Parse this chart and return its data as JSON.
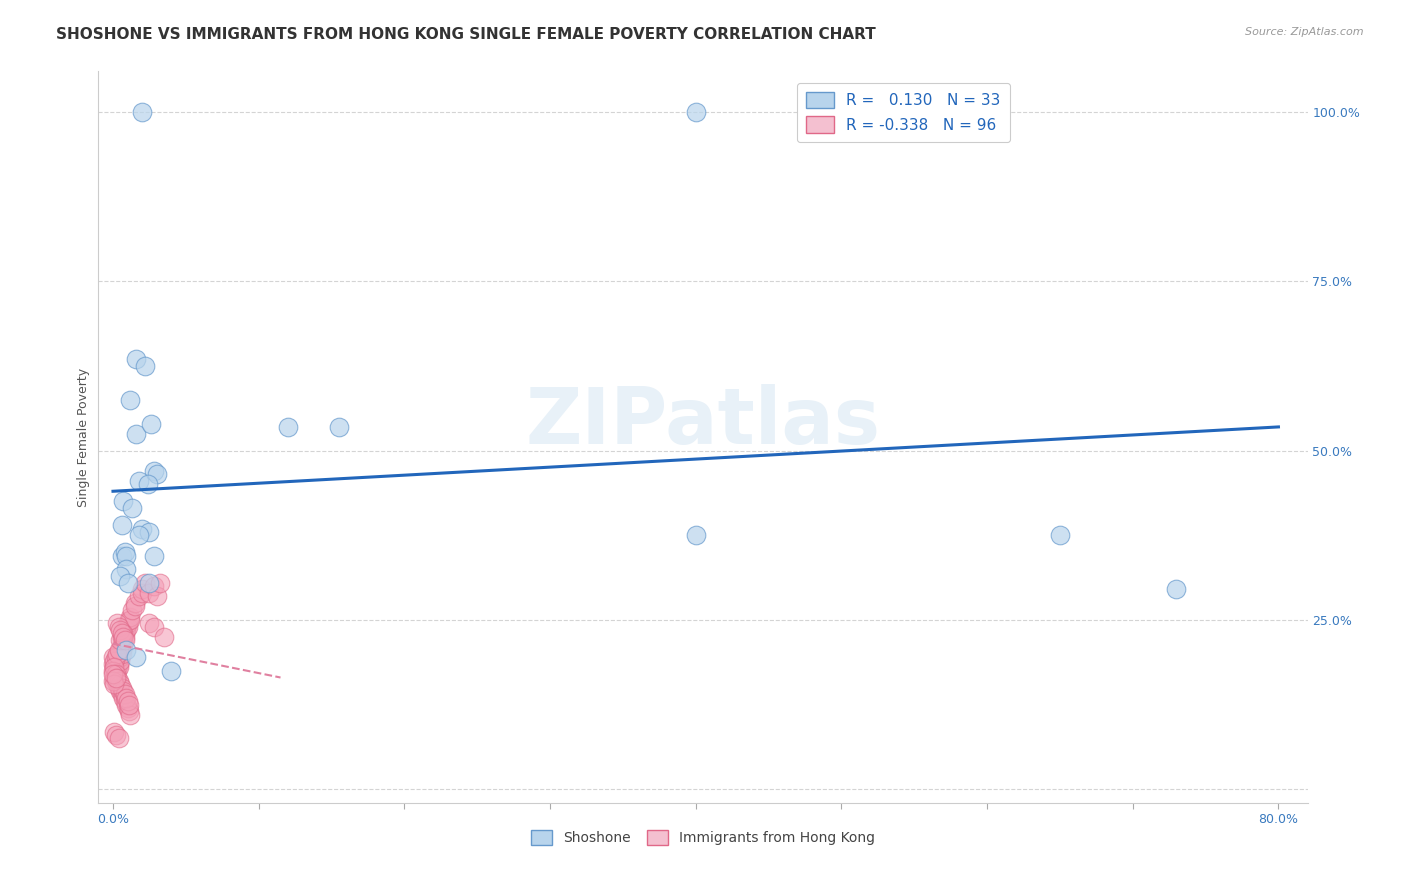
{
  "title": "SHOSHONE VS IMMIGRANTS FROM HONG KONG SINGLE FEMALE POVERTY CORRELATION CHART",
  "source": "Source: ZipAtlas.com",
  "ylabel": "Single Female Poverty",
  "xlim": [
    -0.01,
    0.82
  ],
  "ylim": [
    -0.02,
    1.06
  ],
  "watermark": "ZIPatlas",
  "shoshone_color": "#b8d4ec",
  "shoshone_edge": "#6699cc",
  "hk_color": "#f4a0b8",
  "hk_edge": "#e06888",
  "trend_blue_color": "#2266bb",
  "trend_pink_color": "#e080a0",
  "shoshone_points": [
    [
      0.02,
      1.0
    ],
    [
      0.4,
      1.0
    ],
    [
      0.016,
      0.635
    ],
    [
      0.022,
      0.625
    ],
    [
      0.012,
      0.575
    ],
    [
      0.016,
      0.525
    ],
    [
      0.028,
      0.47
    ],
    [
      0.03,
      0.465
    ],
    [
      0.018,
      0.455
    ],
    [
      0.024,
      0.45
    ],
    [
      0.007,
      0.425
    ],
    [
      0.026,
      0.54
    ],
    [
      0.12,
      0.535
    ],
    [
      0.155,
      0.535
    ],
    [
      0.006,
      0.39
    ],
    [
      0.02,
      0.385
    ],
    [
      0.025,
      0.38
    ],
    [
      0.018,
      0.375
    ],
    [
      0.013,
      0.415
    ],
    [
      0.006,
      0.345
    ],
    [
      0.028,
      0.345
    ],
    [
      0.025,
      0.305
    ],
    [
      0.008,
      0.35
    ],
    [
      0.009,
      0.345
    ],
    [
      0.009,
      0.325
    ],
    [
      0.005,
      0.315
    ],
    [
      0.01,
      0.305
    ],
    [
      0.04,
      0.175
    ],
    [
      0.4,
      0.375
    ],
    [
      0.65,
      0.375
    ],
    [
      0.73,
      0.295
    ],
    [
      0.009,
      0.205
    ],
    [
      0.016,
      0.195
    ]
  ],
  "hk_points": [
    [
      0.0,
      0.185
    ],
    [
      0.001,
      0.18
    ],
    [
      0.001,
      0.175
    ],
    [
      0.002,
      0.185
    ],
    [
      0.002,
      0.18
    ],
    [
      0.002,
      0.175
    ],
    [
      0.003,
      0.19
    ],
    [
      0.003,
      0.185
    ],
    [
      0.003,
      0.18
    ],
    [
      0.003,
      0.175
    ],
    [
      0.004,
      0.195
    ],
    [
      0.004,
      0.19
    ],
    [
      0.004,
      0.185
    ],
    [
      0.004,
      0.18
    ],
    [
      0.005,
      0.205
    ],
    [
      0.005,
      0.2
    ],
    [
      0.005,
      0.195
    ],
    [
      0.005,
      0.19
    ],
    [
      0.006,
      0.215
    ],
    [
      0.006,
      0.205
    ],
    [
      0.006,
      0.2
    ],
    [
      0.007,
      0.225
    ],
    [
      0.007,
      0.215
    ],
    [
      0.007,
      0.21
    ],
    [
      0.008,
      0.235
    ],
    [
      0.008,
      0.23
    ],
    [
      0.008,
      0.225
    ],
    [
      0.009,
      0.24
    ],
    [
      0.009,
      0.235
    ],
    [
      0.01,
      0.245
    ],
    [
      0.01,
      0.24
    ],
    [
      0.011,
      0.25
    ],
    [
      0.012,
      0.255
    ],
    [
      0.012,
      0.25
    ],
    [
      0.013,
      0.265
    ],
    [
      0.015,
      0.275
    ],
    [
      0.015,
      0.27
    ],
    [
      0.018,
      0.285
    ],
    [
      0.02,
      0.295
    ],
    [
      0.02,
      0.29
    ],
    [
      0.022,
      0.305
    ],
    [
      0.025,
      0.29
    ],
    [
      0.028,
      0.3
    ],
    [
      0.03,
      0.285
    ],
    [
      0.032,
      0.305
    ],
    [
      0.001,
      0.165
    ],
    [
      0.002,
      0.16
    ],
    [
      0.003,
      0.155
    ],
    [
      0.004,
      0.15
    ],
    [
      0.005,
      0.145
    ],
    [
      0.006,
      0.14
    ],
    [
      0.007,
      0.135
    ],
    [
      0.008,
      0.13
    ],
    [
      0.009,
      0.125
    ],
    [
      0.01,
      0.12
    ],
    [
      0.011,
      0.115
    ],
    [
      0.012,
      0.11
    ],
    [
      0.0,
      0.195
    ],
    [
      0.001,
      0.19
    ],
    [
      0.002,
      0.195
    ],
    [
      0.003,
      0.2
    ],
    [
      0.004,
      0.205
    ],
    [
      0.005,
      0.22
    ],
    [
      0.006,
      0.225
    ],
    [
      0.007,
      0.23
    ],
    [
      0.0,
      0.175
    ],
    [
      0.001,
      0.18
    ],
    [
      0.002,
      0.17
    ],
    [
      0.003,
      0.165
    ],
    [
      0.004,
      0.16
    ],
    [
      0.005,
      0.155
    ],
    [
      0.006,
      0.15
    ],
    [
      0.007,
      0.145
    ],
    [
      0.008,
      0.14
    ],
    [
      0.009,
      0.135
    ],
    [
      0.01,
      0.13
    ],
    [
      0.011,
      0.125
    ],
    [
      0.003,
      0.245
    ],
    [
      0.004,
      0.24
    ],
    [
      0.005,
      0.235
    ],
    [
      0.006,
      0.23
    ],
    [
      0.007,
      0.225
    ],
    [
      0.008,
      0.22
    ],
    [
      0.025,
      0.245
    ],
    [
      0.028,
      0.24
    ],
    [
      0.035,
      0.225
    ],
    [
      0.001,
      0.085
    ],
    [
      0.002,
      0.08
    ],
    [
      0.004,
      0.075
    ],
    [
      0.0,
      0.16
    ],
    [
      0.001,
      0.155
    ],
    [
      0.0,
      0.17
    ],
    [
      0.002,
      0.165
    ]
  ],
  "blue_trend_x": [
    0.0,
    0.8
  ],
  "blue_trend_y": [
    0.44,
    0.535
  ],
  "pink_trend_x": [
    0.0,
    0.115
  ],
  "pink_trend_y": [
    0.215,
    0.165
  ],
  "grid_color": "#d0d0d0",
  "background_color": "#ffffff",
  "title_fontsize": 11,
  "axis_label_fontsize": 9,
  "tick_fontsize": 9,
  "legend_fontsize": 11
}
